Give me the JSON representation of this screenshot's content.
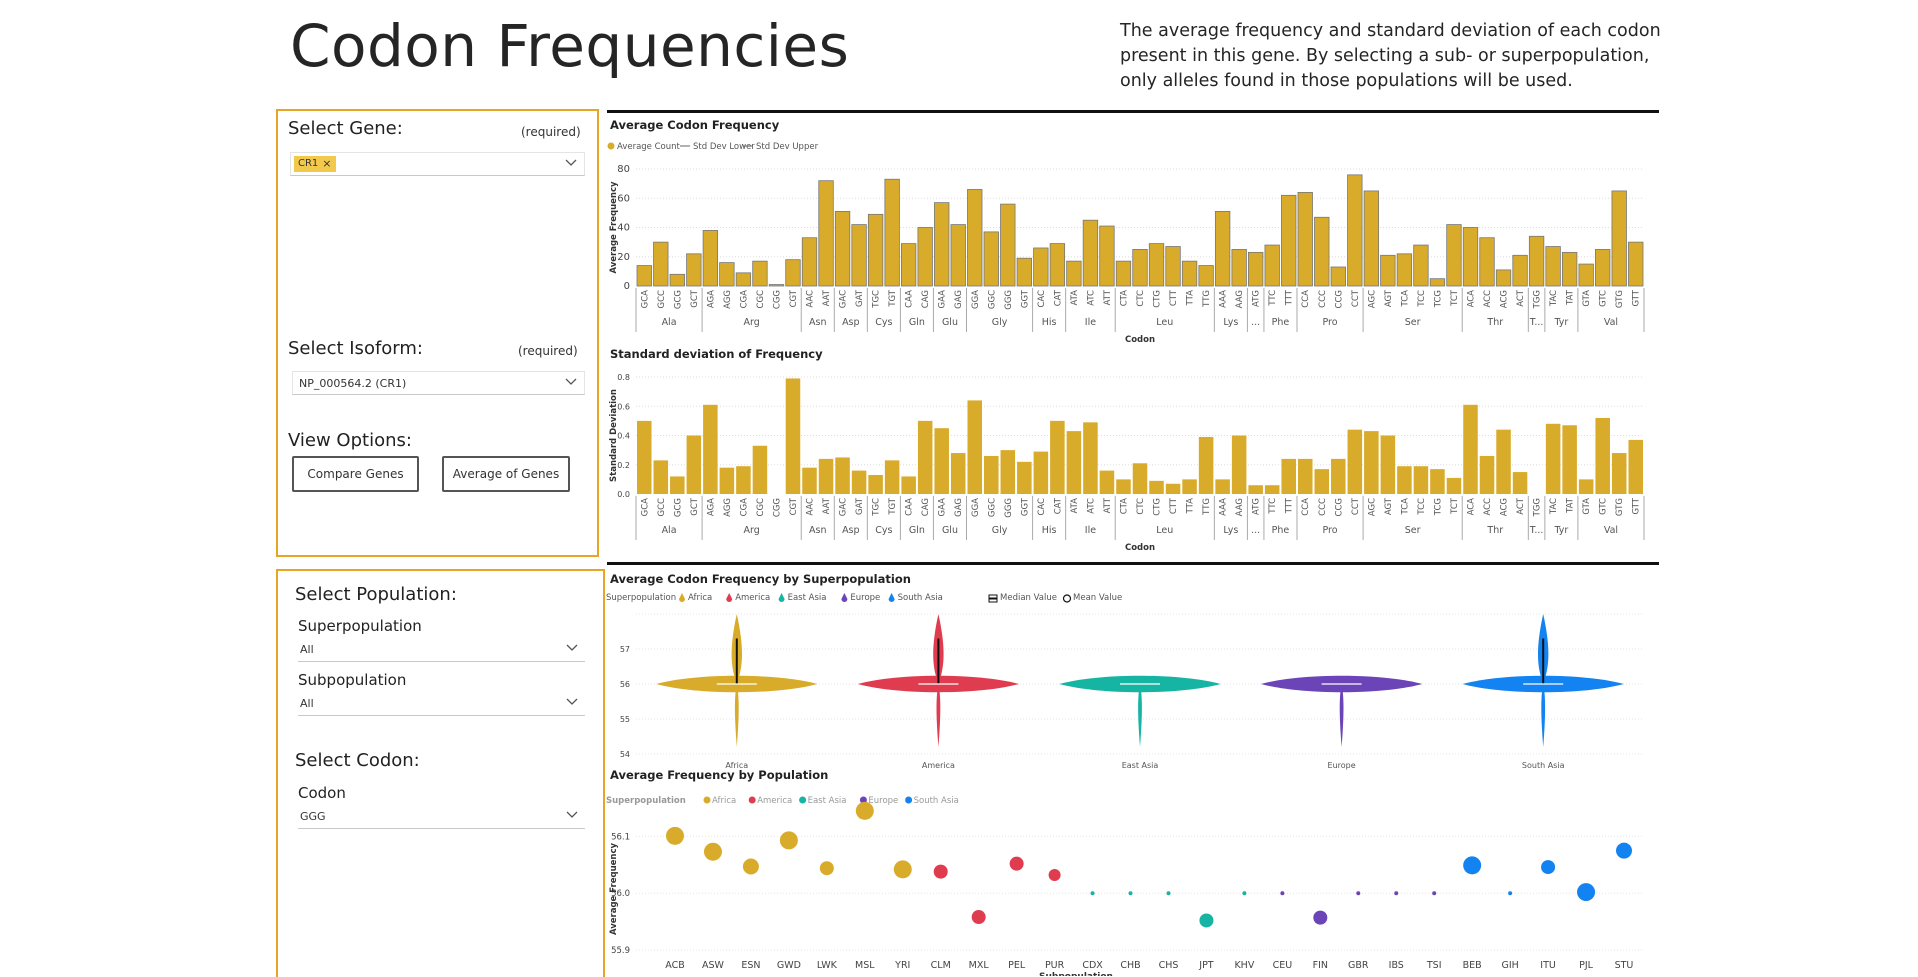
{
  "header": {
    "title": "Codon Frequencies",
    "description": "The average frequency and standard deviation of each codon present in this gene. By selecting a sub- or superpopulation, only alleles found in those populations will be used."
  },
  "gene_panel": {
    "gene_label": "Select Gene:",
    "gene_required": "(required)",
    "gene_chip": "CR1",
    "isoform_label": "Select Isoform:",
    "isoform_required": "(required)",
    "isoform_value": "NP_000564.2 (CR1)",
    "view_label": "View Options:",
    "compare_button": "Compare Genes",
    "average_button": "Average of Genes"
  },
  "population_panel": {
    "population_label": "Select Population:",
    "superpop_label": "Superpopulation",
    "superpop_value": "All",
    "subpop_label": "Subpopulation",
    "subpop_value": "All",
    "codon_section_label": "Select Codon:",
    "codon_label": "Codon",
    "codon_value": "GGG"
  },
  "colors": {
    "accent": "#e8a524",
    "bar": "#d9ab2b",
    "Africa": "#d9ab2b",
    "America": "#e03c4f",
    "East Asia": "#16b4a3",
    "Europe": "#6b45b8",
    "South Asia": "#1283f0"
  },
  "chart_data": [
    {
      "id": "avg_codon",
      "type": "bar",
      "title": "Average Codon Frequency",
      "legend": [
        "Average Count",
        "Std Dev Lower",
        "Std Dev Upper"
      ],
      "xlabel": "Codon",
      "ylabel": "Average Frequency",
      "ylim": [
        0,
        80
      ],
      "yticks": [
        0,
        20,
        40,
        60,
        80
      ],
      "grid": true,
      "categories": [
        "GCA",
        "GCC",
        "GCG",
        "GCT",
        "AGA",
        "AGG",
        "CGA",
        "CGC",
        "CGG",
        "CGT",
        "AAC",
        "AAT",
        "GAC",
        "GAT",
        "TGC",
        "TGT",
        "CAA",
        "CAG",
        "GAA",
        "GAG",
        "GGA",
        "GGC",
        "GGG",
        "GGT",
        "CAC",
        "CAT",
        "ATA",
        "ATC",
        "ATT",
        "CTA",
        "CTC",
        "CTG",
        "CTT",
        "TTA",
        "TTG",
        "AAA",
        "AAG",
        "ATG",
        "TTC",
        "TTT",
        "CCA",
        "CCC",
        "CCG",
        "CCT",
        "AGC",
        "AGT",
        "TCA",
        "TCC",
        "TCG",
        "TCT",
        "ACA",
        "ACC",
        "ACG",
        "ACT",
        "TGG",
        "TAC",
        "TAT",
        "GTA",
        "GTC",
        "GTG",
        "GTT"
      ],
      "groups": [
        {
          "name": "Ala",
          "count": 4
        },
        {
          "name": "Arg",
          "count": 6
        },
        {
          "name": "Asn",
          "count": 2
        },
        {
          "name": "Asp",
          "count": 2
        },
        {
          "name": "Cys",
          "count": 2
        },
        {
          "name": "Gln",
          "count": 2
        },
        {
          "name": "Glu",
          "count": 2
        },
        {
          "name": "Gly",
          "count": 4
        },
        {
          "name": "His",
          "count": 2
        },
        {
          "name": "Ile",
          "count": 3
        },
        {
          "name": "Leu",
          "count": 6
        },
        {
          "name": "Lys",
          "count": 2
        },
        {
          "name": "...",
          "count": 1
        },
        {
          "name": "Phe",
          "count": 2
        },
        {
          "name": "Pro",
          "count": 4
        },
        {
          "name": "Ser",
          "count": 6
        },
        {
          "name": "Thr",
          "count": 4
        },
        {
          "name": "T...",
          "count": 1
        },
        {
          "name": "Tyr",
          "count": 2
        },
        {
          "name": "Val",
          "count": 4
        }
      ],
      "values": [
        14,
        30,
        8,
        22,
        38,
        16,
        9,
        17,
        1,
        18,
        33,
        72,
        51,
        42,
        49,
        73,
        29,
        40,
        57,
        42,
        66,
        37,
        56,
        19,
        26,
        29,
        17,
        45,
        41,
        17,
        25,
        29,
        27,
        17,
        14,
        51,
        25,
        23,
        28,
        62,
        64,
        47,
        13,
        76,
        65,
        21,
        22,
        28,
        5,
        42,
        40,
        33,
        11,
        21,
        34,
        27,
        23,
        15,
        25,
        65,
        30
      ]
    },
    {
      "id": "std_codon",
      "type": "bar",
      "title": "Standard deviation of Frequency",
      "xlabel": "Codon",
      "ylabel": "Standard Deviation",
      "ylim": [
        0,
        0.8
      ],
      "yticks": [
        0.0,
        0.2,
        0.4,
        0.6,
        0.8
      ],
      "ytick_labels": [
        "0.0",
        "0.2",
        "0.4",
        "0.6",
        "0.8"
      ],
      "grid": true,
      "values": [
        0.5,
        0.23,
        0.12,
        0.4,
        0.61,
        0.18,
        0.19,
        0.33,
        0.0,
        0.79,
        0.18,
        0.24,
        0.25,
        0.16,
        0.13,
        0.23,
        0.12,
        0.5,
        0.45,
        0.28,
        0.64,
        0.26,
        0.3,
        0.22,
        0.29,
        0.5,
        0.43,
        0.49,
        0.16,
        0.1,
        0.21,
        0.09,
        0.07,
        0.1,
        0.39,
        0.1,
        0.4,
        0.06,
        0.06,
        0.24,
        0.24,
        0.17,
        0.24,
        0.44,
        0.43,
        0.4,
        0.19,
        0.19,
        0.17,
        0.11,
        0.61,
        0.26,
        0.44,
        0.15,
        0.0,
        0.48,
        0.47,
        0.1,
        0.52,
        0.28,
        0.37
      ]
    },
    {
      "id": "violin",
      "type": "violin",
      "title": "Average Codon Frequency by Superpopulation",
      "legend_title": "Superpopulation",
      "legend": [
        "Africa",
        "America",
        "East Asia",
        "Europe",
        "South Asia"
      ],
      "legend_extra": [
        "Median Value",
        "Mean Value"
      ],
      "categories": [
        "Africa",
        "America",
        "East Asia",
        "Europe",
        "South Asia"
      ],
      "ylim": [
        54,
        58
      ],
      "yticks": [
        54,
        55,
        56,
        57
      ],
      "medians": [
        56,
        56,
        56,
        56,
        56
      ],
      "upper_spike": [
        58,
        58,
        56,
        56,
        58
      ],
      "lower_spike": [
        54.2,
        54.2,
        54.2,
        54.2,
        54.2
      ]
    },
    {
      "id": "scatter",
      "type": "scatter",
      "title": "Average Frequency by Population",
      "legend_title": "Superpopulation",
      "legend": [
        "Africa",
        "America",
        "East Asia",
        "Europe",
        "South Asia"
      ],
      "xlabel": "Subpopulation",
      "ylabel": "Average Frequency",
      "ylim": [
        55.9,
        56.15
      ],
      "yticks": [
        55.9,
        56.0,
        56.1
      ],
      "ytick_labels": [
        "55.9",
        "56.0",
        "56.1"
      ],
      "points": [
        {
          "x": "ACB",
          "y": 56.101,
          "group": "Africa",
          "size": 9
        },
        {
          "x": "ASW",
          "y": 56.073,
          "group": "Africa",
          "size": 9
        },
        {
          "x": "ESN",
          "y": 56.047,
          "group": "Africa",
          "size": 8
        },
        {
          "x": "GWD",
          "y": 56.093,
          "group": "Africa",
          "size": 9
        },
        {
          "x": "LWK",
          "y": 56.044,
          "group": "Africa",
          "size": 7
        },
        {
          "x": "MSL",
          "y": 56.145,
          "group": "Africa",
          "size": 9
        },
        {
          "x": "YRI",
          "y": 56.042,
          "group": "Africa",
          "size": 9
        },
        {
          "x": "CLM",
          "y": 56.038,
          "group": "America",
          "size": 7
        },
        {
          "x": "MXL",
          "y": 55.958,
          "group": "America",
          "size": 7
        },
        {
          "x": "PEL",
          "y": 56.052,
          "group": "America",
          "size": 7
        },
        {
          "x": "PUR",
          "y": 56.032,
          "group": "America",
          "size": 6
        },
        {
          "x": "CDX",
          "y": 56.0,
          "group": "East Asia",
          "size": 2
        },
        {
          "x": "CHB",
          "y": 56.0,
          "group": "East Asia",
          "size": 2
        },
        {
          "x": "CHS",
          "y": 56.0,
          "group": "East Asia",
          "size": 2
        },
        {
          "x": "JPT",
          "y": 55.952,
          "group": "East Asia",
          "size": 7
        },
        {
          "x": "KHV",
          "y": 56.0,
          "group": "East Asia",
          "size": 2
        },
        {
          "x": "CEU",
          "y": 56.0,
          "group": "Europe",
          "size": 2
        },
        {
          "x": "FIN",
          "y": 55.957,
          "group": "Europe",
          "size": 7
        },
        {
          "x": "GBR",
          "y": 56.0,
          "group": "Europe",
          "size": 2
        },
        {
          "x": "IBS",
          "y": 56.0,
          "group": "Europe",
          "size": 2
        },
        {
          "x": "TSI",
          "y": 56.0,
          "group": "Europe",
          "size": 2
        },
        {
          "x": "BEB",
          "y": 56.049,
          "group": "South Asia",
          "size": 9
        },
        {
          "x": "GIH",
          "y": 56.0,
          "group": "South Asia",
          "size": 2
        },
        {
          "x": "ITU",
          "y": 56.046,
          "group": "South Asia",
          "size": 7
        },
        {
          "x": "PJL",
          "y": 56.002,
          "group": "South Asia",
          "size": 9
        },
        {
          "x": "STU",
          "y": 56.075,
          "group": "South Asia",
          "size": 8
        }
      ]
    }
  ]
}
